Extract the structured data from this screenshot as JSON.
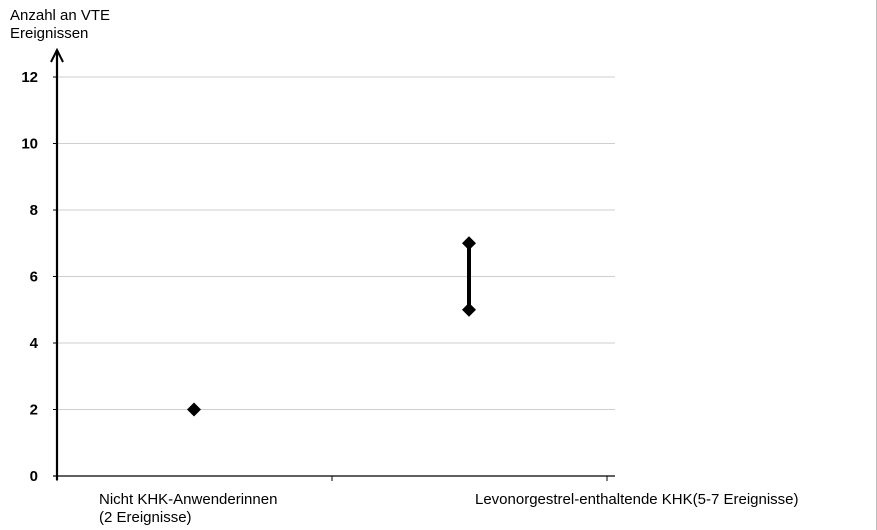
{
  "chart_data": {
    "type": "scatter",
    "ylabel_lines": [
      "Anzahl an VTE",
      "Ereignissen"
    ],
    "xlabel": "",
    "categories": [
      {
        "label_lines": [
          "Nicht KHK-Anwenderinnen",
          "(2 Ereignisse)"
        ]
      },
      {
        "label_lines": [
          "Levonorgestrel-enthaltende KHK(5-7 Ereignisse)"
        ]
      }
    ],
    "series": [
      {
        "points": [
          {
            "category_index": 0,
            "low": 2,
            "high": 2
          },
          {
            "category_index": 1,
            "low": 5,
            "high": 7
          }
        ]
      }
    ],
    "ylim": [
      0,
      12
    ],
    "yticks": [
      0,
      2,
      4,
      6,
      8,
      10,
      12
    ],
    "grid": true,
    "legend": "none",
    "colors": {
      "marker": "#000000",
      "grid": "#cfcfcf",
      "axis": "#000000"
    }
  }
}
